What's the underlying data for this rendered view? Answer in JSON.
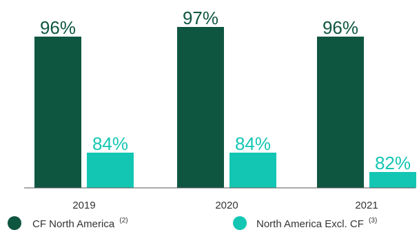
{
  "chart_data": {
    "type": "bar",
    "categories": [
      "2019",
      "2020",
      "2021"
    ],
    "series": [
      {
        "name": "CF North America",
        "note": "(2)",
        "values": [
          96,
          97,
          96
        ],
        "color": "#0f5641",
        "label_color": "#0f5641"
      },
      {
        "name": "North America Excl. CF",
        "note": "(3)",
        "values": [
          84,
          84,
          82
        ],
        "color": "#13c6b3",
        "label_color": "#13c6b3"
      }
    ],
    "value_suffix": "%",
    "ylim": [
      75,
      100
    ],
    "legend_position": "bottom",
    "grid": false,
    "title": "",
    "xlabel": "",
    "ylabel": ""
  }
}
